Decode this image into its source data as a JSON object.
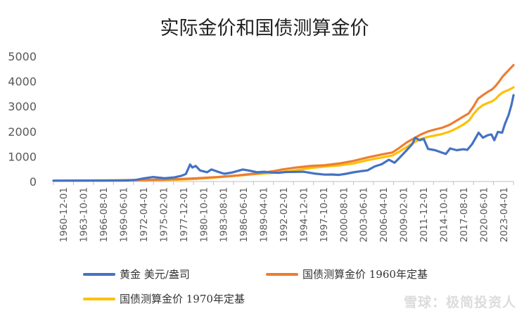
{
  "chart_data": {
    "type": "line",
    "title": "实际金价和国债测算金价",
    "xlabel": "",
    "ylabel": "",
    "ylim": [
      0,
      5000
    ],
    "yticks": [
      0,
      1000,
      2000,
      3000,
      4000,
      5000
    ],
    "x_range": [
      1960.92,
      2025.5
    ],
    "categories": [
      "1960-12-01",
      "1963-10-01",
      "1966-08-01",
      "1969-06-01",
      "1972-04-01",
      "1975-02-01",
      "1977-12-01",
      "1980-10-01",
      "1983-08-01",
      "1986-06-01",
      "1989-04-01",
      "1992-02-01",
      "1994-12-01",
      "1997-10-01",
      "2000-08-01",
      "2003-06-01",
      "2006-04-01",
      "2009-02-01",
      "2011-12-01",
      "2014-10-01",
      "2017-08-01",
      "2020-06-01",
      "2023-04-01"
    ],
    "grid": false,
    "legend_position": "bottom",
    "series": [
      {
        "name": "黄金 美元/盎司",
        "color": "#4472C4",
        "points": [
          [
            1960.92,
            35
          ],
          [
            1968,
            38
          ],
          [
            1971,
            42
          ],
          [
            1972.5,
            65
          ],
          [
            1973.5,
            120
          ],
          [
            1974.9,
            180
          ],
          [
            1976.5,
            130
          ],
          [
            1977.9,
            165
          ],
          [
            1978.9,
            230
          ],
          [
            1979.5,
            300
          ],
          [
            1979.9,
            550
          ],
          [
            1980.1,
            680
          ],
          [
            1980.4,
            560
          ],
          [
            1980.9,
            620
          ],
          [
            1981.5,
            440
          ],
          [
            1982.5,
            370
          ],
          [
            1983.1,
            480
          ],
          [
            1983.9,
            400
          ],
          [
            1984.9,
            310
          ],
          [
            1986,
            360
          ],
          [
            1987.5,
            480
          ],
          [
            1988.5,
            430
          ],
          [
            1989.5,
            370
          ],
          [
            1990.5,
            390
          ],
          [
            1991.5,
            360
          ],
          [
            1992.5,
            345
          ],
          [
            1993.5,
            380
          ],
          [
            1995,
            385
          ],
          [
            1996,
            390
          ],
          [
            1997.5,
            320
          ],
          [
            1999,
            275
          ],
          [
            2000,
            280
          ],
          [
            2001,
            265
          ],
          [
            2002,
            310
          ],
          [
            2003,
            365
          ],
          [
            2004,
            410
          ],
          [
            2005,
            445
          ],
          [
            2006,
            600
          ],
          [
            2007,
            690
          ],
          [
            2008,
            870
          ],
          [
            2008.8,
            750
          ],
          [
            2009.5,
            950
          ],
          [
            2010.5,
            1250
          ],
          [
            2011.3,
            1500
          ],
          [
            2011.7,
            1750
          ],
          [
            2012.3,
            1650
          ],
          [
            2012.9,
            1700
          ],
          [
            2013.5,
            1300
          ],
          [
            2014.5,
            1250
          ],
          [
            2015.5,
            1150
          ],
          [
            2016,
            1100
          ],
          [
            2016.6,
            1320
          ],
          [
            2017.5,
            1250
          ],
          [
            2018.5,
            1290
          ],
          [
            2019,
            1260
          ],
          [
            2019.7,
            1500
          ],
          [
            2020.6,
            1950
          ],
          [
            2021.2,
            1750
          ],
          [
            2021.9,
            1850
          ],
          [
            2022.4,
            1880
          ],
          [
            2022.8,
            1650
          ],
          [
            2023.3,
            1980
          ],
          [
            2023.9,
            1950
          ],
          [
            2024.3,
            2300
          ],
          [
            2024.8,
            2650
          ],
          [
            2025.2,
            3050
          ],
          [
            2025.5,
            3450
          ]
        ]
      },
      {
        "name": "国债测算金价 1960年定基",
        "color": "#ED7D31",
        "points": [
          [
            1960.92,
            35
          ],
          [
            1963,
            37
          ],
          [
            1966,
            40
          ],
          [
            1969,
            45
          ],
          [
            1972,
            55
          ],
          [
            1975,
            70
          ],
          [
            1978,
            90
          ],
          [
            1981,
            130
          ],
          [
            1984,
            180
          ],
          [
            1987,
            250
          ],
          [
            1990,
            340
          ],
          [
            1992,
            420
          ],
          [
            1993,
            480
          ],
          [
            1995,
            560
          ],
          [
            1997,
            620
          ],
          [
            1999,
            650
          ],
          [
            2001,
            720
          ],
          [
            2003,
            820
          ],
          [
            2005,
            960
          ],
          [
            2007,
            1080
          ],
          [
            2008.5,
            1160
          ],
          [
            2009.5,
            1350
          ],
          [
            2010.5,
            1560
          ],
          [
            2011.5,
            1720
          ],
          [
            2012.5,
            1880
          ],
          [
            2013.5,
            2000
          ],
          [
            2014.5,
            2080
          ],
          [
            2015.5,
            2150
          ],
          [
            2016.5,
            2260
          ],
          [
            2017.5,
            2430
          ],
          [
            2018.5,
            2600
          ],
          [
            2019.2,
            2720
          ],
          [
            2019.9,
            3000
          ],
          [
            2020.5,
            3300
          ],
          [
            2021.2,
            3450
          ],
          [
            2022,
            3600
          ],
          [
            2022.5,
            3680
          ],
          [
            2023,
            3820
          ],
          [
            2023.5,
            4000
          ],
          [
            2024,
            4200
          ],
          [
            2024.5,
            4350
          ],
          [
            2025,
            4500
          ],
          [
            2025.5,
            4650
          ]
        ]
      },
      {
        "name": "国债测算金价 1970年定基",
        "color": "#FFC000",
        "points": [
          [
            1969.5,
            35
          ],
          [
            1971,
            38
          ],
          [
            1973,
            45
          ],
          [
            1975,
            55
          ],
          [
            1977,
            68
          ],
          [
            1979,
            80
          ],
          [
            1981,
            105
          ],
          [
            1983,
            145
          ],
          [
            1985,
            195
          ],
          [
            1987,
            240
          ],
          [
            1989,
            290
          ],
          [
            1991,
            330
          ],
          [
            1993,
            380
          ],
          [
            1995,
            450
          ],
          [
            1997,
            540
          ],
          [
            1999,
            600
          ],
          [
            2001,
            640
          ],
          [
            2003,
            720
          ],
          [
            2005,
            850
          ],
          [
            2007,
            960
          ],
          [
            2008.5,
            1040
          ],
          [
            2009.5,
            1200
          ],
          [
            2010.5,
            1380
          ],
          [
            2011.5,
            1550
          ],
          [
            2012.5,
            1700
          ],
          [
            2013.5,
            1780
          ],
          [
            2014.5,
            1840
          ],
          [
            2015.5,
            1900
          ],
          [
            2016.5,
            1990
          ],
          [
            2017.5,
            2120
          ],
          [
            2018.5,
            2280
          ],
          [
            2019.3,
            2450
          ],
          [
            2019.9,
            2700
          ],
          [
            2020.5,
            2900
          ],
          [
            2021.2,
            3050
          ],
          [
            2022,
            3150
          ],
          [
            2022.5,
            3200
          ],
          [
            2023,
            3300
          ],
          [
            2023.5,
            3450
          ],
          [
            2024,
            3560
          ],
          [
            2024.5,
            3620
          ],
          [
            2025,
            3680
          ],
          [
            2025.5,
            3760
          ]
        ]
      }
    ]
  },
  "watermark_text": "雪球：极简投资人"
}
